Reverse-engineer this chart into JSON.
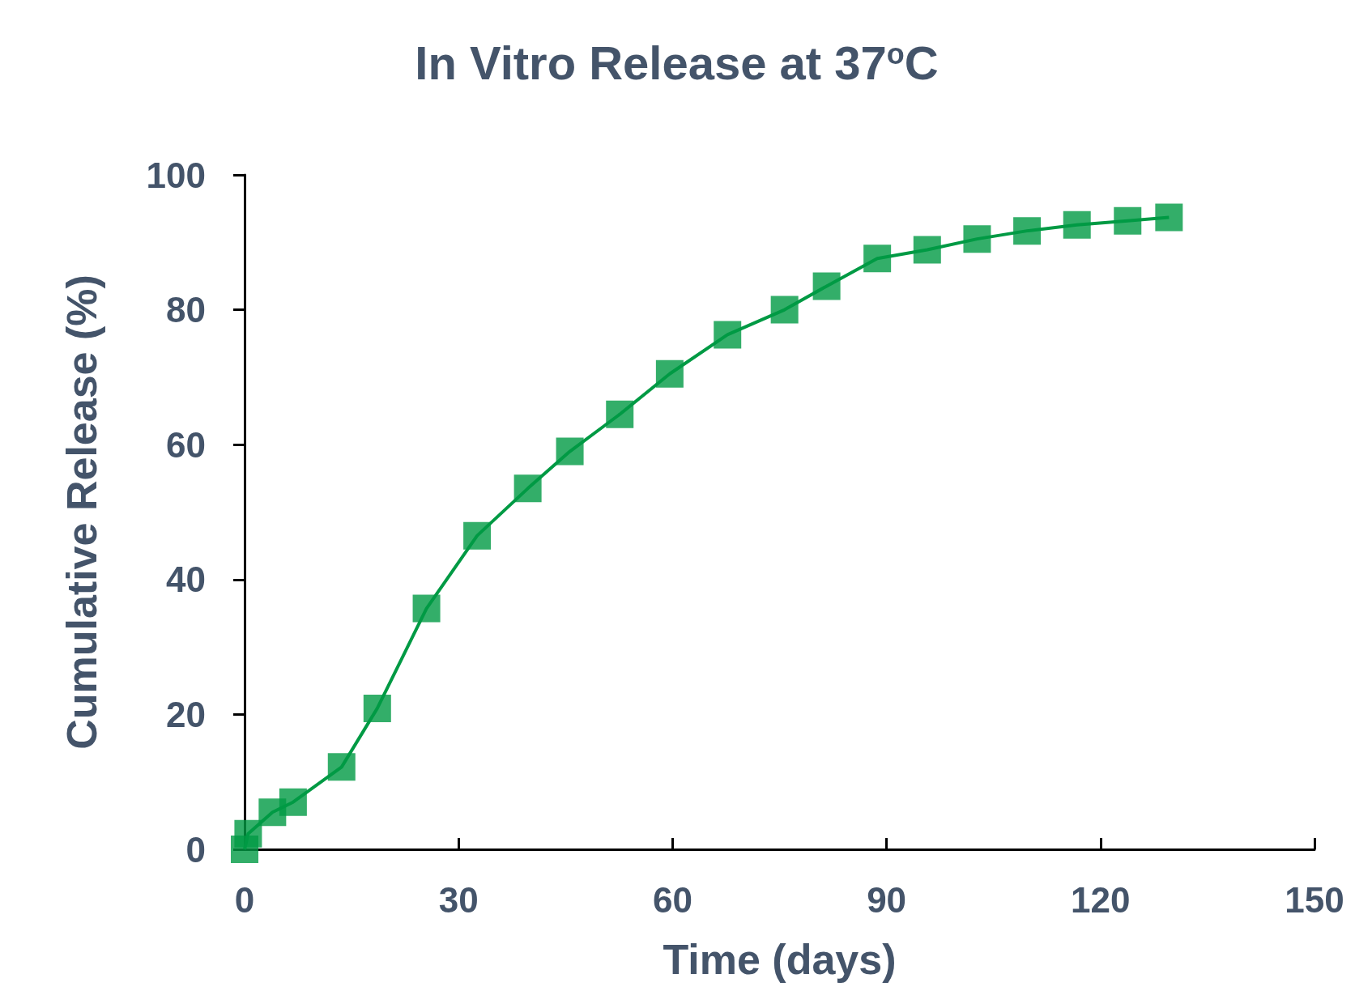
{
  "chart_data": {
    "type": "line",
    "title": "In Vitro Release at 37$^{o}$C",
    "xlabel": "Time (days)",
    "ylabel": "Cumulative Release (%)",
    "xlim": [
      0,
      150
    ],
    "xticks": [
      0,
      30,
      60,
      90,
      120,
      150
    ],
    "ylim": [
      0,
      100
    ],
    "yticks": [
      0,
      20,
      40,
      60,
      80,
      100
    ],
    "grid": false,
    "marker": "square",
    "line_style": "solid",
    "series": [
      {
        "color": "#009a44",
        "x": [
          0,
          0.5,
          3.9,
          6.8,
          13.6,
          18.6,
          25.5,
          32.6,
          39.7,
          45.6,
          52.6,
          59.6,
          67.7,
          75.7,
          81.6,
          88.7,
          95.7,
          102.7,
          109.7,
          116.7,
          123.8,
          129.6
        ],
        "values": [
          0,
          2.3,
          5.5,
          7.0,
          12.2,
          20.9,
          35.7,
          46.5,
          53.5,
          59.0,
          64.5,
          70.5,
          76.3,
          80.0,
          83.5,
          87.6,
          88.9,
          90.5,
          91.7,
          92.6,
          93.2,
          93.7
        ]
      }
    ]
  }
}
